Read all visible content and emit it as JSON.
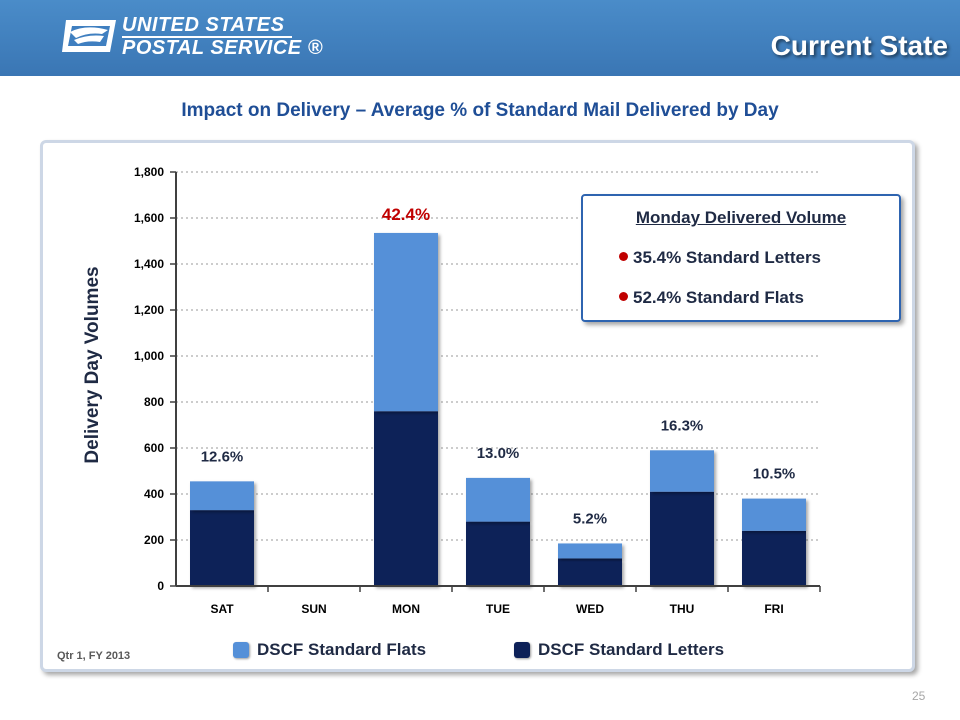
{
  "header": {
    "logo_line1": "UNITED STATES",
    "logo_line2": "POSTAL SERVICE",
    "logo_registered": "®",
    "slide_title": "Current State",
    "color": "#3f7fc0"
  },
  "chart_data": {
    "type": "bar",
    "stacked": true,
    "title": "Impact on Delivery – Average % of Standard Mail Delivered by Day",
    "xlabel": "",
    "ylabel": "Delivery Day Volumes",
    "ylim": [
      0,
      1800
    ],
    "yticks": [
      0,
      200,
      400,
      600,
      800,
      1000,
      1200,
      1400,
      1600,
      1800
    ],
    "ytick_labels": [
      "0",
      "200",
      "400",
      "600",
      "800",
      "1,000",
      "1,200",
      "1,400",
      "1,600",
      "1,800"
    ],
    "categories": [
      "SAT",
      "SUN",
      "MON",
      "TUE",
      "WED",
      "THU",
      "FRI"
    ],
    "series": [
      {
        "name": "DSCF Standard Letters",
        "color": "#0d2158",
        "values": [
          330,
          0,
          760,
          280,
          120,
          410,
          240
        ]
      },
      {
        "name": "DSCF Standard Flats",
        "color": "#5590d8",
        "values": [
          125,
          0,
          775,
          190,
          65,
          180,
          140
        ]
      }
    ],
    "data_labels": [
      "12.6%",
      "",
      "42.4%",
      "13.0%",
      "5.2%",
      "16.3%",
      "10.5%"
    ],
    "data_label_colors": [
      "#1f2a44",
      "#1f2a44",
      "#c00000",
      "#1f2a44",
      "#1f2a44",
      "#1f2a44",
      "#1f2a44"
    ],
    "grid": true,
    "legend_position": "bottom"
  },
  "callout": {
    "title": "Monday Delivered Volume",
    "items": [
      "35.4% Standard Letters",
      "52.4% Standard Flats"
    ],
    "bullet_color": "#c00000"
  },
  "footnote": "Qtr 1, FY 2013",
  "page_number": "25"
}
